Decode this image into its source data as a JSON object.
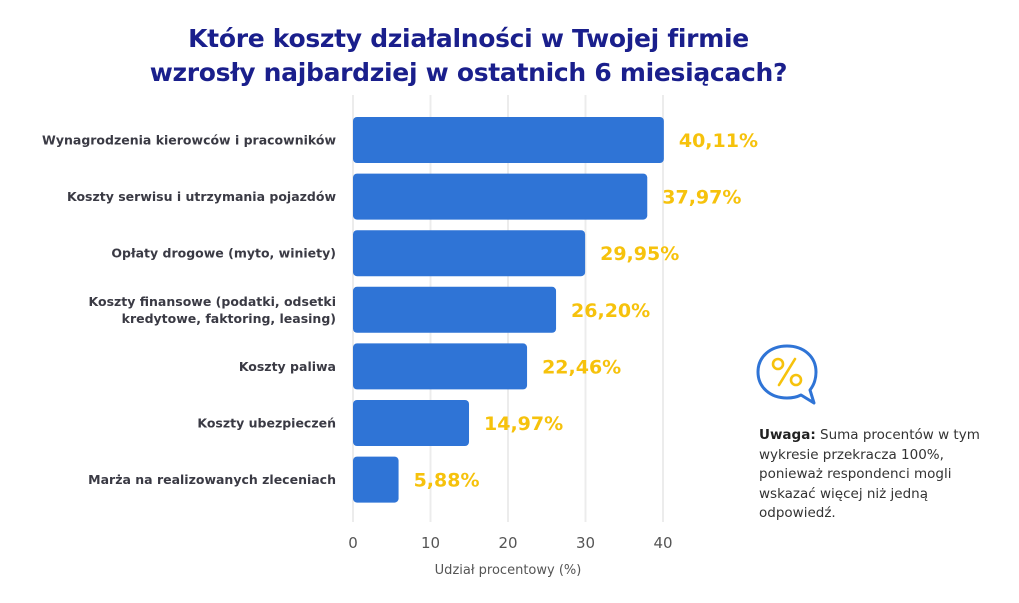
{
  "title": {
    "line1": "Które koszty działalności w Twojej firmie",
    "line2": "wzrosły najbardziej w ostatnich 6 miesiącach?"
  },
  "colors": {
    "title": "#1a1f8c",
    "bar": "#2f74d6",
    "value_label": "#f6c20c",
    "grid": "#ececec",
    "icon_outline": "#2f74d6",
    "icon_symbol": "#f6c20c"
  },
  "chart_data": {
    "type": "bar",
    "orientation": "horizontal",
    "title": "Które koszty działalności w Twojej firmie wzrosły najbardziej w ostatnich 6 miesiącach?",
    "categories": [
      [
        "Wynagrodzenia kierowców i pracowników"
      ],
      [
        "Koszty serwisu i utrzymania pojazdów"
      ],
      [
        "Opłaty drogowe (myto, winiety)"
      ],
      [
        "Koszty finansowe (podatki, odsetki",
        "kredytowe, faktoring, leasing)"
      ],
      [
        "Koszty paliwa"
      ],
      [
        "Koszty ubezpieczeń"
      ],
      [
        "Marża na realizowanych zleceniach"
      ]
    ],
    "values": [
      40.11,
      37.97,
      29.95,
      26.2,
      22.46,
      14.97,
      5.88
    ],
    "value_labels": [
      "40,11%",
      "37,97%",
      "29,95%",
      "26,20%",
      "22,46%",
      "14,97%",
      "5,88%"
    ],
    "xlabel": "Udział procentowy (%)",
    "ylabel": "",
    "xlim": [
      0,
      40
    ],
    "xticks": [
      0,
      10,
      20,
      30,
      40
    ],
    "grid": true,
    "legend": "none"
  },
  "note": {
    "icon": "percent-speech-bubble-icon",
    "bold": "Uwaga:",
    "text": " Suma procentów w tym wykresie przekracza 100%, ponieważ respondenci mogli wskazać więcej niż jedną odpowiedź."
  }
}
